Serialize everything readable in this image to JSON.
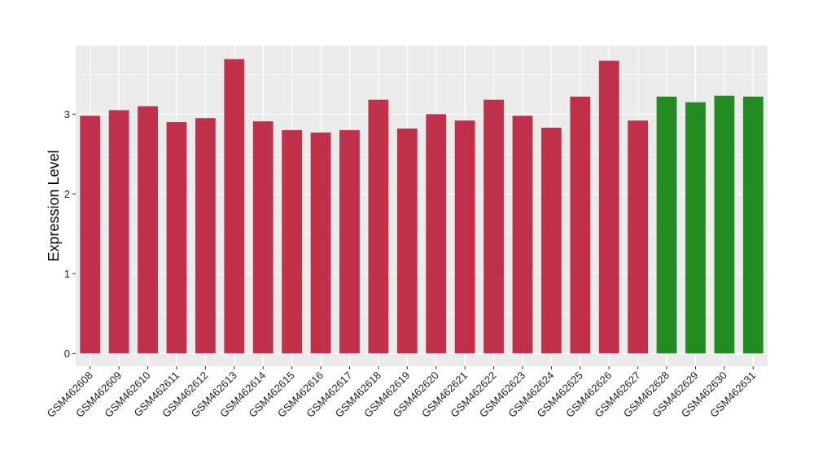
{
  "chart_data": {
    "type": "bar",
    "ylabel": "Expression Level",
    "xlabel": "",
    "ylim": [
      -0.16,
      3.86
    ],
    "yticks": [
      0,
      1,
      2,
      3
    ],
    "grid": true,
    "legend": "none",
    "background_color": "#ebebeb",
    "grid_color": "#ffffff",
    "categories": [
      "GSM462608",
      "GSM462609",
      "GSM462610",
      "GSM462611",
      "GSM462612",
      "GSM462613",
      "GSM462614",
      "GSM462615",
      "GSM462616",
      "GSM462617",
      "GSM462618",
      "GSM462619",
      "GSM462620",
      "GSM462621",
      "GSM462622",
      "GSM462623",
      "GSM462624",
      "GSM462625",
      "GSM462626",
      "GSM462627",
      "GSM462628",
      "GSM462629",
      "GSM462630",
      "GSM462631"
    ],
    "values": [
      2.98,
      3.05,
      3.1,
      2.9,
      2.95,
      3.69,
      2.91,
      2.8,
      2.77,
      2.8,
      3.18,
      2.82,
      3.0,
      2.92,
      3.18,
      2.98,
      2.83,
      3.22,
      3.67,
      2.92,
      3.22,
      3.15,
      3.23,
      3.22
    ],
    "colors": [
      "#c0304a",
      "#c0304a",
      "#c0304a",
      "#c0304a",
      "#c0304a",
      "#c0304a",
      "#c0304a",
      "#c0304a",
      "#c0304a",
      "#c0304a",
      "#c0304a",
      "#c0304a",
      "#c0304a",
      "#c0304a",
      "#c0304a",
      "#c0304a",
      "#c0304a",
      "#c0304a",
      "#c0304a",
      "#c0304a",
      "#228b22",
      "#228b22",
      "#228b22",
      "#228b22"
    ]
  }
}
